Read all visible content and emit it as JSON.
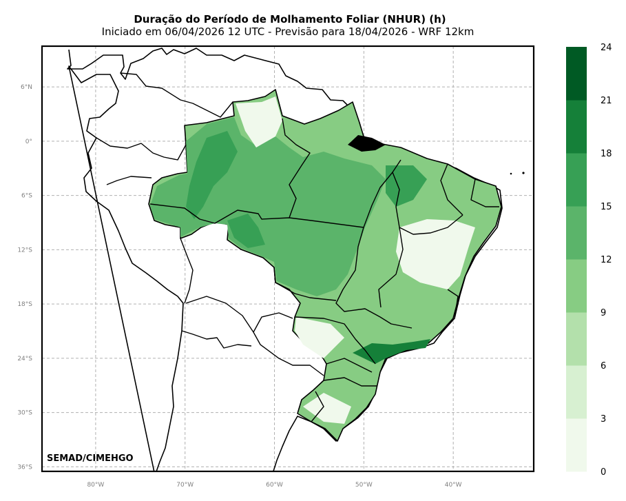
{
  "header": {
    "title": "Duração do Período de Molhamento Foliar (NHUR) (h)",
    "subtitle": "Iniciado em 06/04/2026 12 UTC - Previsão para 18/04/2026 - WRF 12km"
  },
  "map": {
    "lon_range": [
      -86,
      -31
    ],
    "lat_range": [
      -36.5,
      10.5
    ],
    "lon_ticks": [
      {
        "value": -80,
        "label": "80°W"
      },
      {
        "value": -70,
        "label": "70°W"
      },
      {
        "value": -60,
        "label": "60°W"
      },
      {
        "value": -50,
        "label": "50°W"
      },
      {
        "value": -40,
        "label": "40°W"
      }
    ],
    "lat_ticks": [
      {
        "value": 6,
        "label": "6°N"
      },
      {
        "value": 0,
        "label": "0°"
      },
      {
        "value": -6,
        "label": "6°S"
      },
      {
        "value": -12,
        "label": "12°S"
      },
      {
        "value": -18,
        "label": "18°S"
      },
      {
        "value": -24,
        "label": "24°S"
      },
      {
        "value": -30,
        "label": "30°S"
      },
      {
        "value": -36,
        "label": "36°S"
      }
    ],
    "gridlines": true,
    "credit": "SEMAD/CIMEHGO"
  },
  "colorbar": {
    "levels": [
      "0",
      "3",
      "6",
      "9",
      "12",
      "15",
      "18",
      "21",
      "24"
    ],
    "colors": [
      "#f0f9ec",
      "#d7f0d1",
      "#b3e0ab",
      "#87cc83",
      "#5bb46a",
      "#37a055",
      "#158039",
      "#005a24"
    ]
  }
}
